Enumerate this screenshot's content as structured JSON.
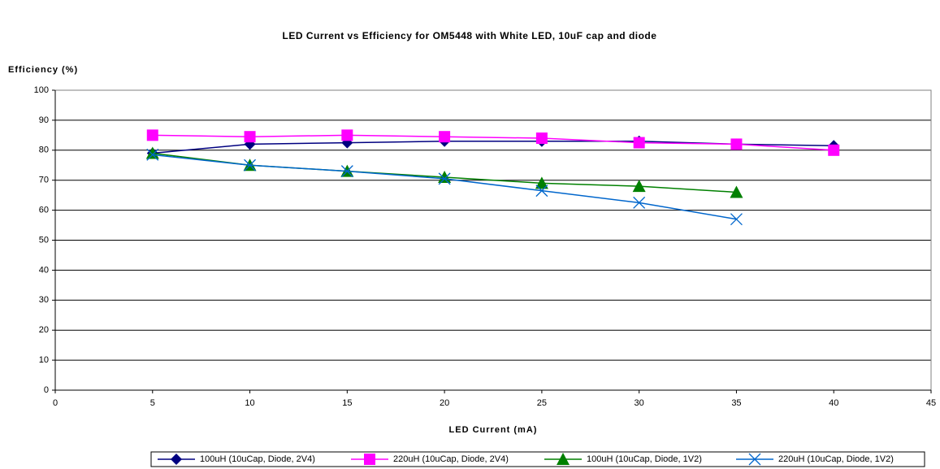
{
  "chart_data": {
    "type": "line",
    "title": "LED Current vs Efficiency for OM5448 with White LED, 10uF cap and diode",
    "x_label": "LED Current (mA)",
    "y_label": "Efficiency (%)",
    "xlim": [
      0,
      45
    ],
    "xticks": [
      0,
      5,
      10,
      15,
      20,
      25,
      30,
      35,
      40,
      45
    ],
    "ylim": [
      0,
      100
    ],
    "yticks": [
      0,
      10,
      20,
      30,
      40,
      50,
      60,
      70,
      80,
      90,
      100
    ],
    "grid": true,
    "legend": "bottom",
    "series": [
      {
        "name": "100uH (10uCap, Diode, 2V4)",
        "color": "#000080",
        "marker": "diamond",
        "x": [
          5,
          10,
          15,
          20,
          25,
          30,
          35,
          40
        ],
        "values": [
          79,
          82,
          82.5,
          83,
          83,
          83,
          82,
          81.5
        ]
      },
      {
        "name": "220uH (10uCap, Diode, 2V4)",
        "color": "#ff00ff",
        "marker": "square",
        "x": [
          5,
          10,
          15,
          20,
          25,
          30,
          35,
          40
        ],
        "values": [
          85,
          84.5,
          85,
          84.5,
          84,
          82.5,
          82,
          80
        ]
      },
      {
        "name": "100uH (10uCap, Diode, 1V2)",
        "color": "#008000",
        "marker": "triangle",
        "x": [
          5,
          10,
          15,
          20,
          25,
          30,
          35
        ],
        "values": [
          79,
          75,
          73,
          71,
          69,
          68,
          66
        ]
      },
      {
        "name": "220uH (10uCap, Diode, 1V2)",
        "color": "#0066cc",
        "marker": "x",
        "x": [
          5,
          10,
          15,
          20,
          25,
          30,
          35
        ],
        "values": [
          78.5,
          75,
          73,
          70.5,
          66.5,
          62.5,
          57
        ]
      }
    ]
  }
}
